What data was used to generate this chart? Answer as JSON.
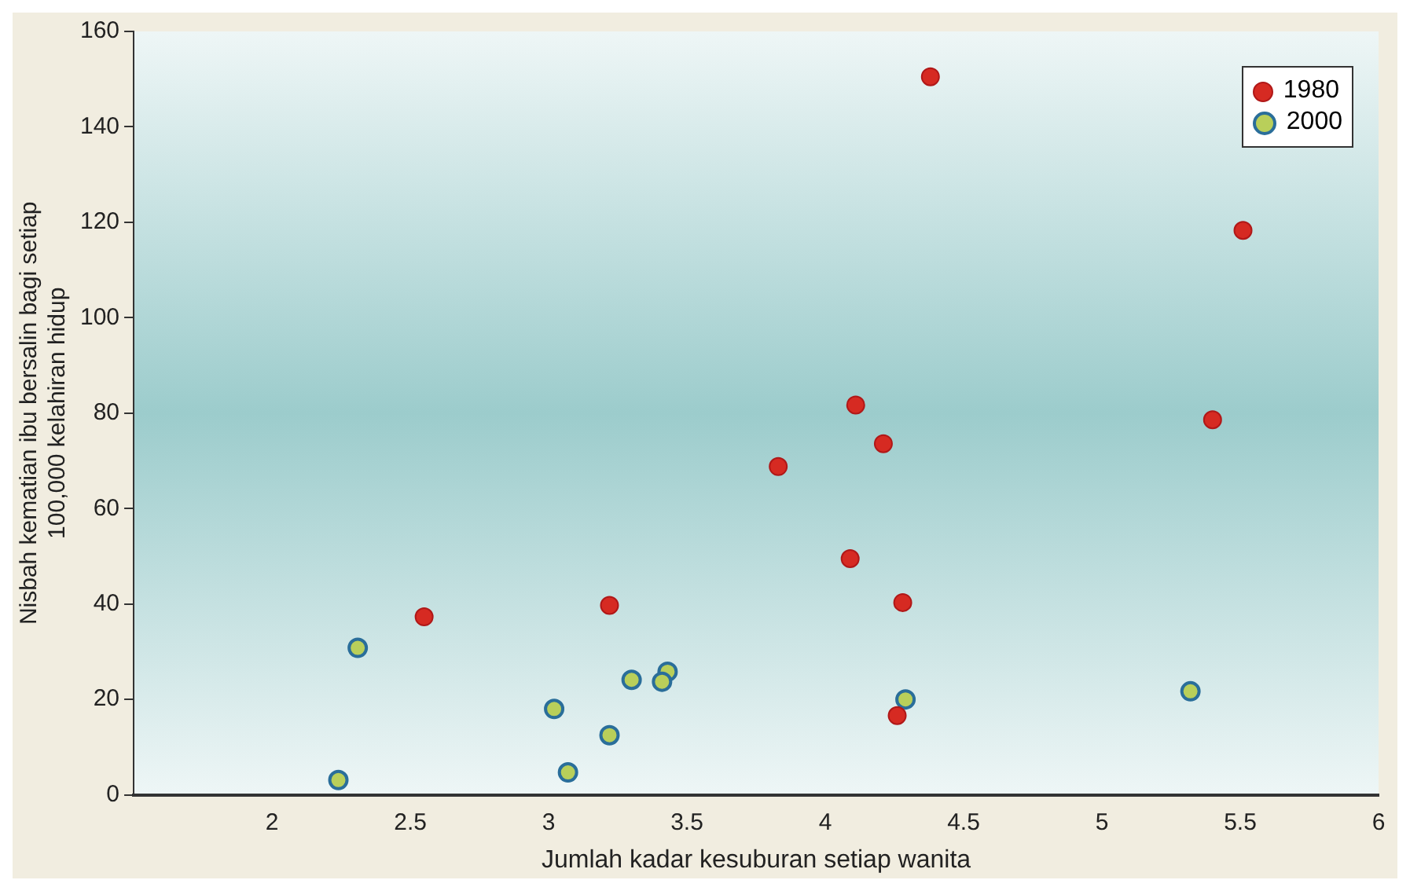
{
  "chart_data": {
    "type": "scatter",
    "xlabel": "Jumlah kadar kesuburan setiap wanita",
    "ylabel": "Nisbah kematian ibu bersalin bagi setiap\n100,000 kelahiran hidup",
    "xlim": [
      1.5,
      6
    ],
    "xticks": [
      2,
      2.5,
      3,
      3.5,
      4,
      4.5,
      5,
      5.5,
      6
    ],
    "ylim": [
      0,
      160
    ],
    "yticks": [
      0,
      20,
      40,
      60,
      80,
      100,
      120,
      140,
      160
    ],
    "grid": false,
    "legend": "top right",
    "marker": "circle",
    "series": [
      {
        "name": "1980",
        "color": "#d62a22",
        "x": [
          4.38,
          5.51,
          4.11,
          4.21,
          5.4,
          3.83,
          4.09,
          4.28,
          3.22,
          2.55,
          4.26
        ],
        "values": [
          150.5,
          118.3,
          81.7,
          73.6,
          78.6,
          68.8,
          49.5,
          40.3,
          39.7,
          37.3,
          16.6
        ]
      },
      {
        "name": "2000",
        "color": "#b9cf5a",
        "x": [
          2.31,
          2.24,
          3.02,
          3.07,
          3.22,
          3.3,
          3.43,
          3.41,
          4.29,
          5.32
        ],
        "values": [
          30.8,
          3.1,
          18,
          4.7,
          12.5,
          24.1,
          25.8,
          23.7,
          20,
          21.7
        ]
      }
    ]
  }
}
